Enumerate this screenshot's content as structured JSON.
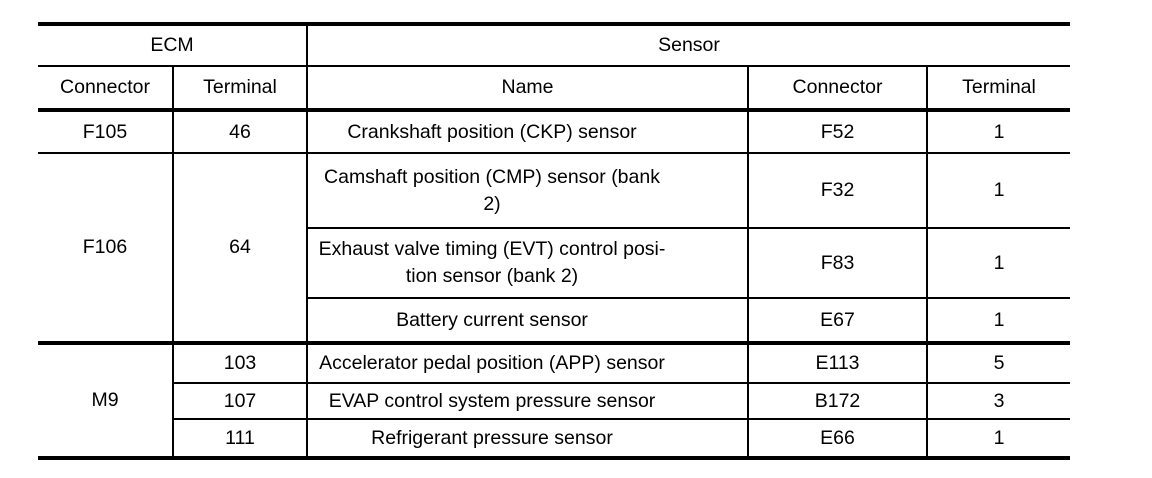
{
  "table": {
    "title_semantic": "ECM to Sensor connector and terminal mapping",
    "groups": {
      "ecm": "ECM",
      "sensor": "Sensor"
    },
    "subheaders": [
      "Connector",
      "Terminal",
      "Name",
      "Connector",
      "Terminal"
    ],
    "rows": [
      {
        "ecm_connector": "F105",
        "ecm_terminal": "46",
        "name": "Crankshaft position (CKP) sensor",
        "sensor_connector": "F52",
        "sensor_terminal": "1"
      },
      {
        "ecm_connector": "F106",
        "ecm_terminal": "64",
        "name": "Camshaft position (CMP) sensor (bank 2)",
        "sensor_connector": "F32",
        "sensor_terminal": "1"
      },
      {
        "name": "Exhaust valve timing (EVT) control posi­tion sensor (bank 2)",
        "sensor_connector": "F83",
        "sensor_terminal": "1"
      },
      {
        "name": "Battery current sensor",
        "sensor_connector": "E67",
        "sensor_terminal": "1"
      },
      {
        "ecm_connector": "M9",
        "ecm_terminal": "103",
        "name": "Accelerator pedal position (APP) sensor",
        "sensor_connector": "E113",
        "sensor_terminal": "5"
      },
      {
        "ecm_terminal": "107",
        "name": "EVAP control system pressure sensor",
        "sensor_connector": "B172",
        "sensor_terminal": "3"
      },
      {
        "ecm_terminal": "111",
        "name": "Refrigerant pressure sensor",
        "sensor_connector": "E66",
        "sensor_terminal": "1"
      }
    ],
    "colors": {
      "border": "#000000",
      "text": "#000000",
      "background": "#ffffff"
    }
  }
}
